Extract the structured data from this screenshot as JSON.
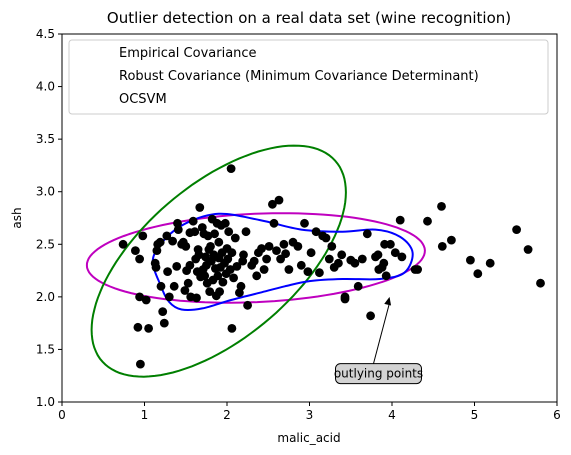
{
  "chart_data": {
    "type": "scatter",
    "title": "Outlier detection on a real data set (wine recognition)",
    "xlabel": "malic_acid",
    "ylabel": "ash",
    "xlim": [
      0,
      6
    ],
    "ylim": [
      1.0,
      4.5
    ],
    "x_ticks": [
      "0",
      "1",
      "2",
      "3",
      "4",
      "5",
      "6"
    ],
    "y_ticks": [
      "1.0",
      "1.5",
      "2.0",
      "2.5",
      "3.0",
      "3.5",
      "4.0",
      "4.5"
    ],
    "grid": false,
    "legend_position": "top",
    "legend": [
      {
        "label": "Empirical Covariance",
        "color": "#bf00bf"
      },
      {
        "label": "Robust Covariance (Minimum Covariance Determinant)",
        "color": "#007f00"
      },
      {
        "label": "OCSVM",
        "color": "#0000ff"
      }
    ],
    "marker_color": "#000000",
    "annotation": {
      "text": "outlying points",
      "box_fill": "#d3d3d3",
      "text_at": [
        3.4,
        1.27
      ],
      "arrow_to": [
        3.97,
        2.0
      ]
    },
    "contours": [
      {
        "name": "Empirical Covariance",
        "color": "#bf00bf",
        "shape": "ellipse",
        "center": [
          2.35,
          2.37
        ],
        "semi_axes": [
          2.05,
          0.42
        ],
        "angle_deg": 2
      },
      {
        "name": "Robust Covariance (Minimum Covariance Determinant)",
        "color": "#007f00",
        "shape": "ellipse",
        "center": [
          1.9,
          2.34
        ],
        "semi_axes": [
          1.72,
          0.79
        ],
        "angle_deg": 30
      },
      {
        "name": "OCSVM",
        "color": "#0000ff",
        "shape": "closed-curve",
        "points": [
          [
            1.2,
            2.1
          ],
          [
            1.1,
            2.35
          ],
          [
            1.25,
            2.55
          ],
          [
            1.5,
            2.7
          ],
          [
            1.9,
            2.79
          ],
          [
            2.4,
            2.73
          ],
          [
            2.9,
            2.64
          ],
          [
            3.4,
            2.62
          ],
          [
            3.8,
            2.64
          ],
          [
            4.1,
            2.57
          ],
          [
            4.25,
            2.42
          ],
          [
            4.15,
            2.23
          ],
          [
            3.85,
            2.17
          ],
          [
            3.4,
            2.17
          ],
          [
            3.0,
            2.15
          ],
          [
            2.7,
            2.1
          ],
          [
            2.4,
            2.04
          ],
          [
            2.05,
            1.97
          ],
          [
            1.7,
            1.89
          ],
          [
            1.45,
            1.88
          ],
          [
            1.3,
            1.95
          ]
        ]
      }
    ],
    "points": [
      [
        0.74,
        2.5
      ],
      [
        0.89,
        2.44
      ],
      [
        0.92,
        1.71
      ],
      [
        0.94,
        2.36
      ],
      [
        0.94,
        2.0
      ],
      [
        0.95,
        1.36
      ],
      [
        0.98,
        2.58
      ],
      [
        1.02,
        1.97
      ],
      [
        1.05,
        1.7
      ],
      [
        1.13,
        2.32
      ],
      [
        1.14,
        2.28
      ],
      [
        1.15,
        2.44
      ],
      [
        1.16,
        2.5
      ],
      [
        1.19,
        2.52
      ],
      [
        1.2,
        2.1
      ],
      [
        1.22,
        1.86
      ],
      [
        1.24,
        1.75
      ],
      [
        1.27,
        2.58
      ],
      [
        1.28,
        2.24
      ],
      [
        1.3,
        2.0
      ],
      [
        1.34,
        2.53
      ],
      [
        1.36,
        2.1
      ],
      [
        1.39,
        2.29
      ],
      [
        1.4,
        2.7
      ],
      [
        1.41,
        2.64
      ],
      [
        1.45,
        2.5
      ],
      [
        1.47,
        2.52
      ],
      [
        1.49,
        2.06
      ],
      [
        1.5,
        2.48
      ],
      [
        1.51,
        2.25
      ],
      [
        1.53,
        2.13
      ],
      [
        1.55,
        2.61
      ],
      [
        1.55,
        2.3
      ],
      [
        1.56,
        2.0
      ],
      [
        1.59,
        2.72
      ],
      [
        1.61,
        2.62
      ],
      [
        1.62,
        2.36
      ],
      [
        1.63,
        1.99
      ],
      [
        1.64,
        2.24
      ],
      [
        1.65,
        2.45
      ],
      [
        1.66,
        2.4
      ],
      [
        1.67,
        2.85
      ],
      [
        1.68,
        2.19
      ],
      [
        1.7,
        2.66
      ],
      [
        1.71,
        2.26
      ],
      [
        1.72,
        2.6
      ],
      [
        1.73,
        2.2
      ],
      [
        1.74,
        2.38
      ],
      [
        1.75,
        2.3
      ],
      [
        1.76,
        2.13
      ],
      [
        1.77,
        2.58
      ],
      [
        1.78,
        2.45
      ],
      [
        1.79,
        2.05
      ],
      [
        1.8,
        2.48
      ],
      [
        1.81,
        2.34
      ],
      [
        1.82,
        2.74
      ],
      [
        1.83,
        2.16
      ],
      [
        1.84,
        2.4
      ],
      [
        1.85,
        2.6
      ],
      [
        1.86,
        2.27
      ],
      [
        1.87,
        2.01
      ],
      [
        1.88,
        2.7
      ],
      [
        1.89,
        2.2
      ],
      [
        1.9,
        2.37
      ],
      [
        1.9,
        2.52
      ],
      [
        1.91,
        2.05
      ],
      [
        1.92,
        2.28
      ],
      [
        1.93,
        2.68
      ],
      [
        1.94,
        2.42
      ],
      [
        1.95,
        2.14
      ],
      [
        1.97,
        2.32
      ],
      [
        1.98,
        2.7
      ],
      [
        1.99,
        2.22
      ],
      [
        2.0,
        2.46
      ],
      [
        2.01,
        2.36
      ],
      [
        2.02,
        2.62
      ],
      [
        2.04,
        2.26
      ],
      [
        2.05,
        3.22
      ],
      [
        2.06,
        2.42
      ],
      [
        2.06,
        1.7
      ],
      [
        2.08,
        2.18
      ],
      [
        2.1,
        2.56
      ],
      [
        2.12,
        2.29
      ],
      [
        2.15,
        2.04
      ],
      [
        2.17,
        2.1
      ],
      [
        2.19,
        2.34
      ],
      [
        2.2,
        2.4
      ],
      [
        2.23,
        2.62
      ],
      [
        2.25,
        1.92
      ],
      [
        2.3,
        2.3
      ],
      [
        2.33,
        2.34
      ],
      [
        2.36,
        2.2
      ],
      [
        2.38,
        2.42
      ],
      [
        2.42,
        2.46
      ],
      [
        2.45,
        2.26
      ],
      [
        2.48,
        2.36
      ],
      [
        2.51,
        2.48
      ],
      [
        2.55,
        2.88
      ],
      [
        2.57,
        2.7
      ],
      [
        2.6,
        2.44
      ],
      [
        2.63,
        2.92
      ],
      [
        2.65,
        2.36
      ],
      [
        2.69,
        2.5
      ],
      [
        2.71,
        2.41
      ],
      [
        2.75,
        2.26
      ],
      [
        2.8,
        2.52
      ],
      [
        2.86,
        2.48
      ],
      [
        2.9,
        2.3
      ],
      [
        2.94,
        2.7
      ],
      [
        2.98,
        2.24
      ],
      [
        3.02,
        2.42
      ],
      [
        3.08,
        2.62
      ],
      [
        3.12,
        2.23
      ],
      [
        3.16,
        2.58
      ],
      [
        3.2,
        2.56
      ],
      [
        3.24,
        2.36
      ],
      [
        3.27,
        2.48
      ],
      [
        3.3,
        2.28
      ],
      [
        3.35,
        2.32
      ],
      [
        3.39,
        2.4
      ],
      [
        3.43,
        2.0
      ],
      [
        3.43,
        1.98
      ],
      [
        3.5,
        2.35
      ],
      [
        3.55,
        2.32
      ],
      [
        3.59,
        2.1
      ],
      [
        3.64,
        2.36
      ],
      [
        3.7,
        2.6
      ],
      [
        3.74,
        1.82
      ],
      [
        3.8,
        2.38
      ],
      [
        3.83,
        2.4
      ],
      [
        3.84,
        2.26
      ],
      [
        3.88,
        2.28
      ],
      [
        3.9,
        2.32
      ],
      [
        3.91,
        2.5
      ],
      [
        3.93,
        2.2
      ],
      [
        3.98,
        2.5
      ],
      [
        4.04,
        2.42
      ],
      [
        4.1,
        2.73
      ],
      [
        4.12,
        2.38
      ],
      [
        4.28,
        2.26
      ],
      [
        4.31,
        2.26
      ],
      [
        4.43,
        2.72
      ],
      [
        4.6,
        2.86
      ],
      [
        4.61,
        2.48
      ],
      [
        4.72,
        2.54
      ],
      [
        4.95,
        2.35
      ],
      [
        5.04,
        2.22
      ],
      [
        5.19,
        2.32
      ],
      [
        5.51,
        2.64
      ],
      [
        5.65,
        2.45
      ],
      [
        5.8,
        2.13
      ]
    ]
  }
}
